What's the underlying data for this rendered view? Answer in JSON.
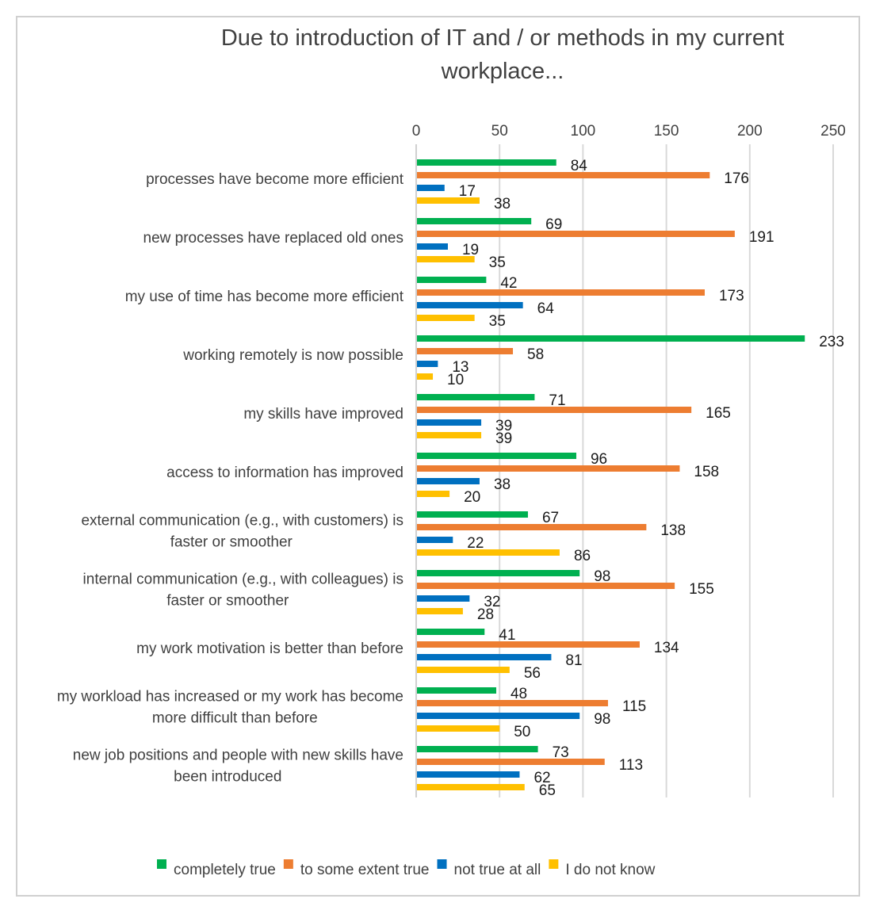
{
  "chart_data": {
    "type": "bar",
    "orientation": "horizontal",
    "title": "Due to introduction of IT and / or methods in my current workplace...",
    "title_lines": [
      "Due to introduction of IT and / or methods in my current",
      "workplace..."
    ],
    "xlabel": "",
    "ylabel": "",
    "xlim": [
      0,
      250
    ],
    "xticks": [
      0,
      50,
      100,
      150,
      200,
      250
    ],
    "x_axis_position": "top",
    "grid": true,
    "legend_position": "bottom",
    "categories": [
      "processes have become more efficient",
      "new processes have replaced old ones",
      "my use of time has become more efficient",
      "working remotely is now possible",
      "my skills have improved",
      "access to information has improved",
      "external communication (e.g., with customers) is faster or smoother",
      "internal communication (e.g., with colleagues) is faster or smoother",
      "my work motivation is better than before",
      "my workload has increased or my work has become more difficult than before",
      "new job positions and people with new skills have been introduced"
    ],
    "category_lines": [
      [
        "processes have become more efficient"
      ],
      [
        "new processes have replaced old ones"
      ],
      [
        "my use of time has become more efficient"
      ],
      [
        "working remotely is now possible"
      ],
      [
        "my skills have improved"
      ],
      [
        "access to information has improved"
      ],
      [
        "external communication (e.g., with customers) is",
        "faster or smoother"
      ],
      [
        "internal communication (e.g., with colleagues) is",
        "faster or smoother"
      ],
      [
        "my work motivation is better than before"
      ],
      [
        "my workload has increased or my work has become",
        "more difficult than before"
      ],
      [
        "new job positions and people with new skills have",
        "been introduced"
      ]
    ],
    "series": [
      {
        "name": "completely true",
        "color": "#00B050",
        "values": [
          84,
          69,
          42,
          233,
          71,
          96,
          67,
          98,
          41,
          48,
          73
        ]
      },
      {
        "name": "to some extent true",
        "color": "#ED7D31",
        "values": [
          176,
          191,
          173,
          58,
          165,
          158,
          138,
          155,
          134,
          115,
          113
        ]
      },
      {
        "name": "not true at all",
        "color": "#0070C0",
        "values": [
          17,
          19,
          64,
          13,
          39,
          38,
          22,
          32,
          81,
          98,
          62
        ]
      },
      {
        "name": "I do not know",
        "color": "#FFC000",
        "values": [
          38,
          35,
          35,
          10,
          39,
          20,
          86,
          28,
          56,
          50,
          65
        ]
      }
    ],
    "colors": {
      "grid": "#d9d9d9",
      "axis_line": "#d0d0d0",
      "text": "#404040",
      "frame": "#d0d0d0"
    }
  }
}
